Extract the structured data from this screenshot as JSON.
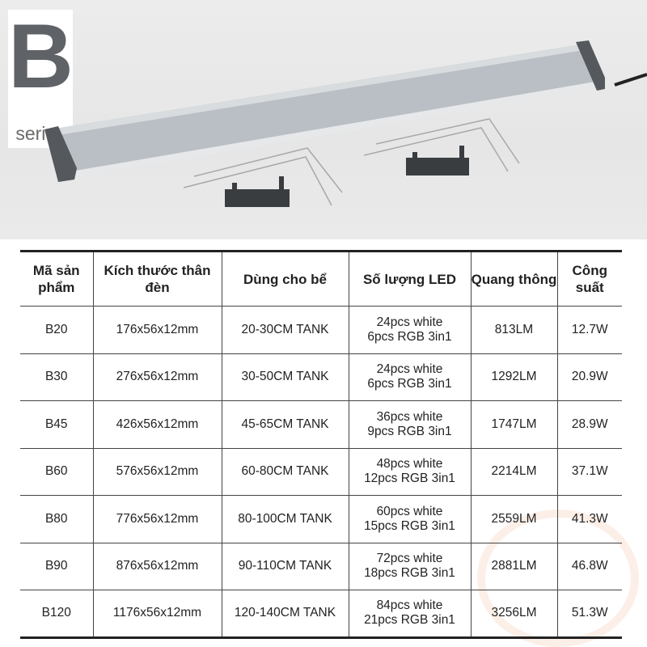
{
  "badge": {
    "letter": "B",
    "label": "series"
  },
  "table": {
    "headers": [
      "Mã sản phẩm",
      "Kích thước thân đèn",
      "Dùng cho bể",
      "Số lượng LED",
      "Quang thông",
      "Công suất"
    ],
    "rows": [
      [
        "B20",
        "176x56x12mm",
        "20-30CM TANK",
        "24pcs white",
        "6pcs RGB 3in1",
        "813LM",
        "12.7W"
      ],
      [
        "B30",
        "276x56x12mm",
        "30-50CM TANK",
        "24pcs white",
        "6pcs RGB 3in1",
        "1292LM",
        "20.9W"
      ],
      [
        "B45",
        "426x56x12mm",
        "45-65CM TANK",
        "36pcs white",
        "9pcs RGB 3in1",
        "1747LM",
        "28.9W"
      ],
      [
        "B60",
        "576x56x12mm",
        "60-80CM TANK",
        "48pcs white",
        "12pcs RGB 3in1",
        "2214LM",
        "37.1W"
      ],
      [
        "B80",
        "776x56x12mm",
        "80-100CM TANK",
        "60pcs white",
        "15pcs RGB 3in1",
        "2559LM",
        "41.3W"
      ],
      [
        "B90",
        "876x56x12mm",
        "90-110CM TANK",
        "72pcs white",
        "18pcs RGB 3in1",
        "2881LM",
        "46.8W"
      ],
      [
        "B120",
        "1176x56x12mm",
        "120-140CM TANK",
        "84pcs white",
        "21pcs RGB 3in1",
        "3256LM",
        "51.3W"
      ]
    ]
  }
}
